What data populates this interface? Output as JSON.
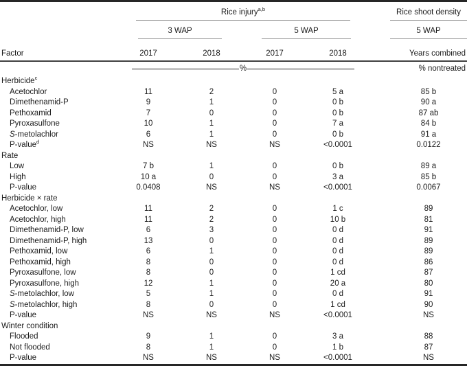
{
  "table": {
    "header": {
      "factor_label": "Factor",
      "group1": {
        "label": "Rice injury",
        "sup": "a,b"
      },
      "group2": {
        "label": "Rice shoot density"
      },
      "sub1": "3 WAP",
      "sub2": "5 WAP",
      "sub3": "5 WAP",
      "years": [
        "2017",
        "2018",
        "2017",
        "2018"
      ],
      "combined_label": "Years combined"
    },
    "units": {
      "injury_unit": "%",
      "density_unit": "% nontreated"
    },
    "rows": [
      {
        "type": "section",
        "label": "Herbicide",
        "sup": "c"
      },
      {
        "type": "data",
        "label": "Acetochlor",
        "values": [
          "11",
          "2",
          "0",
          "5 a",
          "85 b"
        ]
      },
      {
        "type": "data",
        "label": "Dimethenamid-P",
        "values": [
          "9",
          "1",
          "0",
          "0 b",
          "90 a"
        ]
      },
      {
        "type": "data",
        "label": "Pethoxamid",
        "values": [
          "7",
          "0",
          "0",
          "0 b",
          "87 ab"
        ]
      },
      {
        "type": "data",
        "label": "Pyroxasulfone",
        "values": [
          "10",
          "1",
          "0",
          "7 a",
          "84 b"
        ]
      },
      {
        "type": "data",
        "italic": "S",
        "label": "-metolachlor",
        "values": [
          "6",
          "1",
          "0",
          "0 b",
          "91 a"
        ]
      },
      {
        "type": "data",
        "label": "P-value",
        "sup": "d",
        "values": [
          "NS",
          "NS",
          "NS",
          "<0.0001",
          "0.0122"
        ]
      },
      {
        "type": "section",
        "label": "Rate"
      },
      {
        "type": "data",
        "label": "Low",
        "values": [
          "7 b",
          "1",
          "0",
          "0 b",
          "89 a"
        ]
      },
      {
        "type": "data",
        "label": "High",
        "values": [
          "10 a",
          "0",
          "0",
          "3 a",
          "85 b"
        ]
      },
      {
        "type": "data",
        "label": "P-value",
        "values": [
          "0.0408",
          "NS",
          "NS",
          "<0.0001",
          "0.0067"
        ]
      },
      {
        "type": "section",
        "label": "Herbicide × rate"
      },
      {
        "type": "data",
        "label": "Acetochlor, low",
        "values": [
          "11",
          "2",
          "0",
          "1 c",
          "89"
        ]
      },
      {
        "type": "data",
        "label": "Acetochlor, high",
        "values": [
          "11",
          "2",
          "0",
          "10 b",
          "81"
        ]
      },
      {
        "type": "data",
        "label": "Dimethenamid-P, low",
        "values": [
          "6",
          "3",
          "0",
          "0 d",
          "91"
        ]
      },
      {
        "type": "data",
        "label": "Dimethenamid-P, high",
        "values": [
          "13",
          "0",
          "0",
          "0 d",
          "89"
        ]
      },
      {
        "type": "data",
        "label": "Pethoxamid, low",
        "values": [
          "6",
          "1",
          "0",
          "0 d",
          "89"
        ]
      },
      {
        "type": "data",
        "label": "Pethoxamid, high",
        "values": [
          "8",
          "0",
          "0",
          "0 d",
          "86"
        ]
      },
      {
        "type": "data",
        "label": "Pyroxasulfone, low",
        "values": [
          "8",
          "0",
          "0",
          "1 cd",
          "87"
        ]
      },
      {
        "type": "data",
        "label": "Pyroxasulfone, high",
        "values": [
          "12",
          "1",
          "0",
          "20 a",
          "80"
        ]
      },
      {
        "type": "data",
        "italic": "S",
        "label": "-metolachlor, low",
        "values": [
          "5",
          "1",
          "0",
          "0 d",
          "91"
        ]
      },
      {
        "type": "data",
        "italic": "S",
        "label": "-metolachlor, high",
        "values": [
          "8",
          "0",
          "0",
          "1 cd",
          "90"
        ]
      },
      {
        "type": "data",
        "label": "P-value",
        "values": [
          "NS",
          "NS",
          "NS",
          "<0.0001",
          "NS"
        ]
      },
      {
        "type": "section",
        "label": "Winter condition"
      },
      {
        "type": "data",
        "label": "Flooded",
        "values": [
          "9",
          "1",
          "0",
          "3 a",
          "88"
        ]
      },
      {
        "type": "data",
        "label": "Not flooded",
        "values": [
          "8",
          "1",
          "0",
          "1 b",
          "87"
        ]
      },
      {
        "type": "data",
        "label": "P-value",
        "values": [
          "NS",
          "NS",
          "NS",
          "<0.0001",
          "NS"
        ]
      }
    ]
  }
}
